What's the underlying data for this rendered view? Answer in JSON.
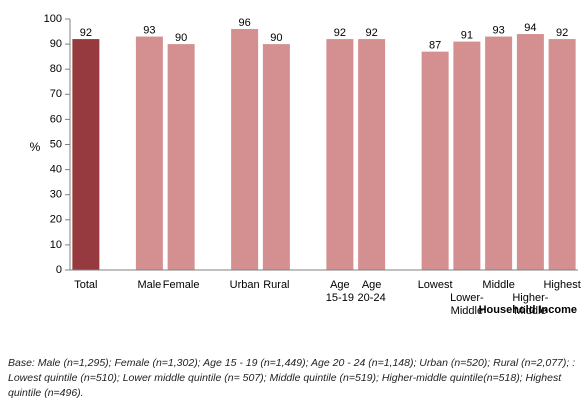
{
  "chart_data": {
    "type": "bar",
    "ylabel": "%",
    "ylim": [
      0,
      100
    ],
    "yticks": [
      0,
      10,
      20,
      30,
      40,
      50,
      60,
      70,
      80,
      90,
      100
    ],
    "categories": [
      "Total",
      "Male",
      "Female",
      "Urban",
      "Rural",
      "Age 15-19",
      "Age 20-24",
      "Lowest",
      "Lower-Middle",
      "Middle",
      "Higher-Middle",
      "Highest"
    ],
    "category_label_lines": [
      [
        "Total"
      ],
      [
        "Male"
      ],
      [
        "Female"
      ],
      [
        "Urban"
      ],
      [
        "Rural"
      ],
      [
        "Age",
        "15-19"
      ],
      [
        "Age",
        "20-24"
      ],
      [
        "Lowest"
      ],
      [
        "",
        "Lower-",
        "Middle"
      ],
      [
        "Middle"
      ],
      [
        "",
        "Higher-",
        "Middle"
      ],
      [
        "Highest"
      ]
    ],
    "values": [
      92,
      93,
      90,
      96,
      90,
      92,
      92,
      87,
      91,
      93,
      94,
      92
    ],
    "highlight_color": "#963a3f",
    "bar_color": "#d48f90",
    "group_label": "Household Income",
    "grid": false
  },
  "footnote": "Base: Male (n=1,295); Female (n=1,302); Age 15 - 19 (n=1,449); Age 20 - 24 (n=1,148); Urban (n=520); Rural (n=2,077); : Lowest quintile (n=510); Lower middle quintile (n= 507); Middle quintile (n=519); Higher-middle quintile(n=518);  Highest quintile (n=496)."
}
